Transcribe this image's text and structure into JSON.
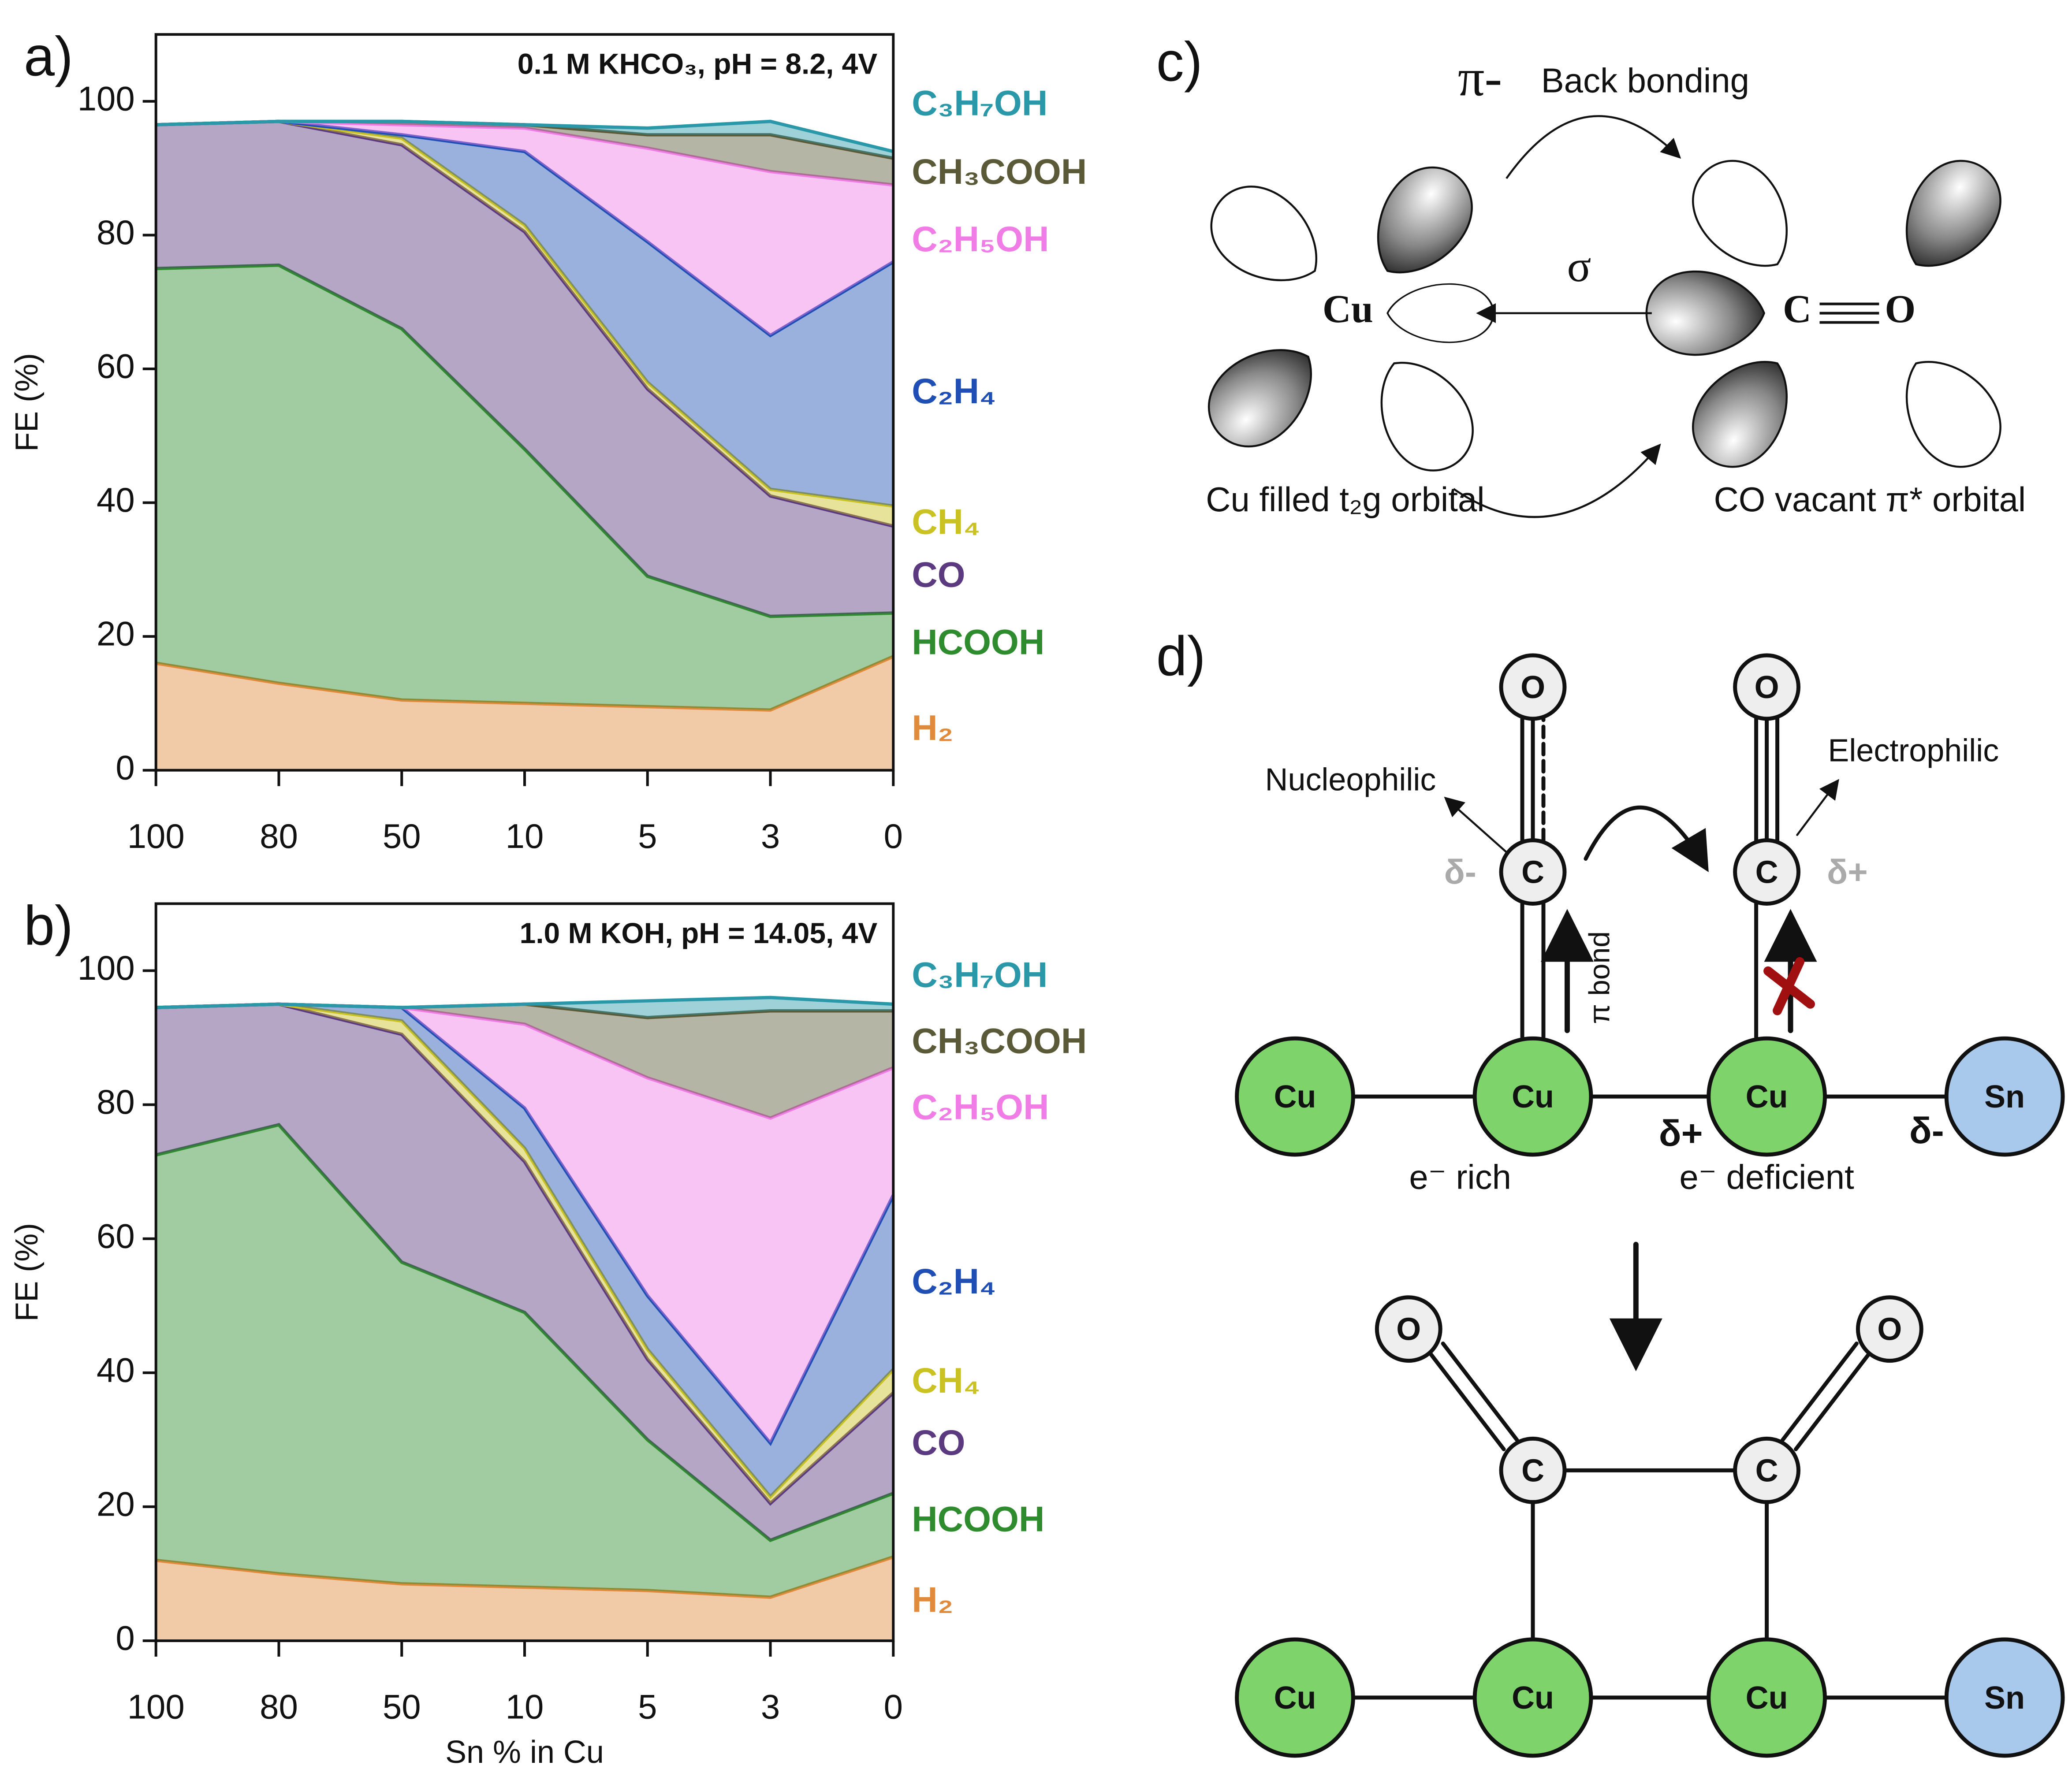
{
  "chart_data": [
    {
      "type": "area",
      "stacked": true,
      "panel_label": "a)",
      "title": "0.1 M KHCO₃, pH = 8.2, 4V",
      "y_label": "FE (%)",
      "categories": [
        "100",
        "80",
        "50",
        "10",
        "5",
        "3",
        "0"
      ],
      "ylim": [
        0,
        110
      ],
      "yticks": [
        0,
        20,
        40,
        60,
        80,
        100
      ],
      "series": [
        {
          "name": "H₂",
          "color": "#e08a3c",
          "values": [
            16,
            13,
            10.5,
            10,
            9.5,
            9,
            17
          ]
        },
        {
          "name": "HCOOH",
          "color": "#2e8b2e",
          "values": [
            59,
            62.5,
            55.5,
            38,
            19.5,
            14,
            6.5
          ]
        },
        {
          "name": "CO",
          "color": "#5b3a80",
          "values": [
            21.5,
            21.5,
            27.5,
            32.5,
            28,
            18,
            13
          ]
        },
        {
          "name": "CH₄",
          "color": "#c9c222",
          "values": [
            0,
            0,
            1,
            1,
            1,
            1,
            3
          ]
        },
        {
          "name": "C₂H₄",
          "color": "#1f4fb4",
          "values": [
            0,
            0,
            0.5,
            11,
            21,
            23,
            36.5
          ]
        },
        {
          "name": "C₂H₅OH",
          "color": "#f07de6",
          "values": [
            0,
            0,
            1.5,
            3.5,
            14,
            24.5,
            11.5
          ]
        },
        {
          "name": "CH₃COOH",
          "color": "#5a5a38",
          "values": [
            0,
            0,
            0.5,
            0.5,
            2,
            5.5,
            4
          ]
        },
        {
          "name": "C₃H₇OH",
          "color": "#2a98a8",
          "values": [
            0,
            0,
            0,
            0,
            1,
            2,
            1
          ]
        }
      ]
    },
    {
      "type": "area",
      "stacked": true,
      "panel_label": "b)",
      "title": "1.0 M KOH, pH = 14.05, 4V",
      "y_label": "FE (%)",
      "x_label": "Sn % in Cu",
      "categories": [
        "100",
        "80",
        "50",
        "10",
        "5",
        "3",
        "0"
      ],
      "ylim": [
        0,
        110
      ],
      "yticks": [
        0,
        20,
        40,
        60,
        80,
        100
      ],
      "series": [
        {
          "name": "H₂",
          "color": "#e08a3c",
          "values": [
            12,
            10,
            8.5,
            8,
            7.5,
            6.5,
            12.5
          ]
        },
        {
          "name": "HCOOH",
          "color": "#2e8b2e",
          "values": [
            60.5,
            67,
            48,
            41,
            22.5,
            8.5,
            9.5
          ]
        },
        {
          "name": "CO",
          "color": "#5b3a80",
          "values": [
            22,
            18,
            34,
            22.5,
            12,
            5.5,
            15
          ]
        },
        {
          "name": "CH₄",
          "color": "#c9c222",
          "values": [
            0,
            0,
            2,
            2,
            1.5,
            1,
            3.5
          ]
        },
        {
          "name": "C₂H₄",
          "color": "#1f4fb4",
          "values": [
            0,
            0,
            2,
            6,
            8,
            8,
            26
          ]
        },
        {
          "name": "C₂H₅OH",
          "color": "#f07de6",
          "values": [
            0,
            0,
            0,
            12.5,
            32.5,
            48.5,
            19
          ]
        },
        {
          "name": "CH₃COOH",
          "color": "#5a5a38",
          "values": [
            0,
            0,
            0,
            3,
            9,
            16,
            8.5
          ]
        },
        {
          "name": "C₃H₇OH",
          "color": "#2a98a8",
          "values": [
            0,
            0,
            0,
            0,
            2.5,
            2,
            1
          ]
        }
      ]
    }
  ],
  "diagram_c": {
    "label": "c)",
    "pi": "π-",
    "back_bonding": "Back bonding",
    "sigma": "σ",
    "cu": "Cu",
    "c": "C",
    "o": "O",
    "cu_caption": "Cu filled t₂g orbital",
    "co_caption": "CO vacant π* orbital"
  },
  "diagram_d": {
    "label": "d)",
    "top_atoms": [
      "Cu",
      "Cu",
      "Cu",
      "Sn",
      "C",
      "C",
      "O",
      "O"
    ],
    "nucleophilic": "Nucleophilic",
    "electrophilic": "Electrophilic",
    "c_left_charge": "δ-",
    "c_right_charge": "δ+",
    "pi_bond": "π bond",
    "cu_charge": "δ+",
    "sn_charge": "δ-",
    "e_rich": "e⁻ rich",
    "e_deficient": "e⁻ deficient",
    "bottom_atoms": [
      "Cu",
      "Cu",
      "Cu",
      "Sn",
      "C",
      "C",
      "O",
      "O"
    ]
  }
}
